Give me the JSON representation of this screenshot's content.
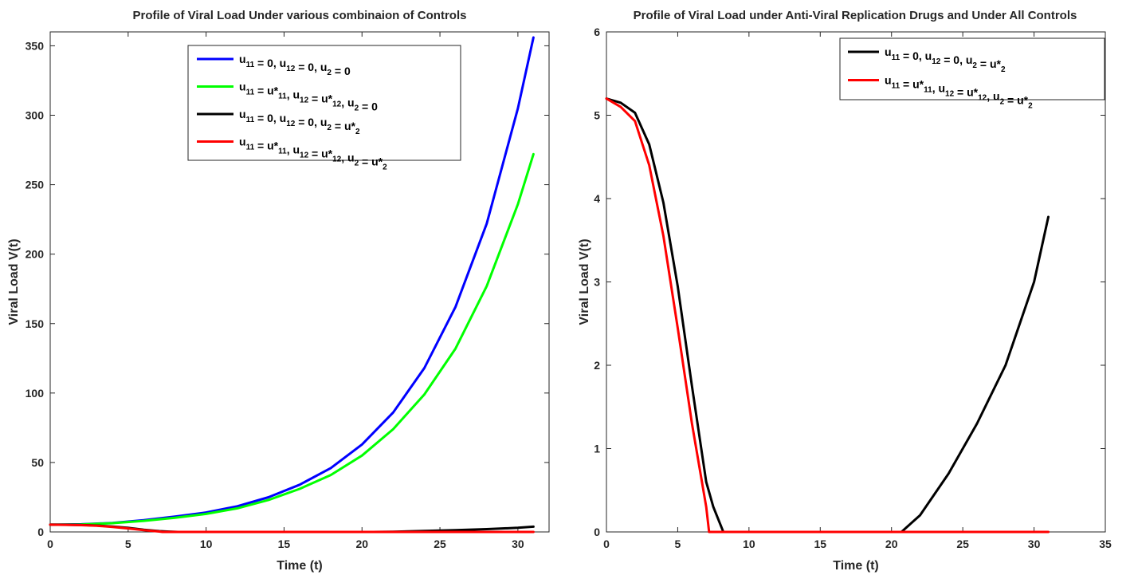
{
  "chart_data": [
    {
      "type": "line",
      "title": "Profile of Viral Load Under various combinaion of Controls",
      "xlabel": "Time (t)",
      "ylabel": "Viral Load V(t)",
      "xlim": [
        0,
        32
      ],
      "ylim": [
        0,
        360
      ],
      "xticks": [
        0,
        5,
        10,
        15,
        20,
        25,
        30
      ],
      "yticks": [
        0,
        50,
        100,
        150,
        200,
        250,
        300,
        350
      ],
      "legend_position": "top-center",
      "series": [
        {
          "name": "u11 = 0, u12 = 0, u2 = 0",
          "legend": [
            [
              "u",
              "11"
            ],
            [
              " = 0, u",
              "12"
            ],
            [
              " = 0, u",
              "2"
            ],
            [
              " = 0",
              ""
            ]
          ],
          "color": "#0000ff",
          "x": [
            0,
            2,
            4,
            6,
            8,
            10,
            12,
            14,
            16,
            18,
            20,
            22,
            24,
            26,
            28,
            30,
            31
          ],
          "y": [
            5.2,
            5.5,
            6.5,
            8.5,
            11,
            14,
            18.5,
            25,
            34,
            46,
            63,
            86,
            118,
            162,
            222,
            305,
            356
          ]
        },
        {
          "name": "u11 = u*11, u12 = u*12, u2 = 0",
          "legend": [
            [
              "u",
              "11"
            ],
            [
              " = u*",
              "11"
            ],
            [
              ", u",
              "12"
            ],
            [
              " = u*",
              "12"
            ],
            [
              ", u",
              "2"
            ],
            [
              " = 0",
              ""
            ]
          ],
          "color": "#00ff00",
          "x": [
            0,
            2,
            4,
            6,
            8,
            10,
            12,
            14,
            16,
            18,
            20,
            22,
            24,
            26,
            28,
            30,
            31
          ],
          "y": [
            5.2,
            5.4,
            6.3,
            8.0,
            10.2,
            13,
            17,
            23,
            31,
            41,
            55,
            74,
            99,
            132,
            177,
            236,
            272
          ]
        },
        {
          "name": "u11 = 0, u12 = 0, u2 = u*2",
          "legend": [
            [
              "u",
              "11"
            ],
            [
              " = 0, u",
              "12"
            ],
            [
              " = 0, u",
              "2"
            ],
            [
              " = u*",
              "2"
            ]
          ],
          "color": "#000000",
          "x": [
            0,
            1,
            2,
            3,
            4,
            5,
            6,
            7,
            7.5,
            8.2,
            10,
            15,
            20,
            20.7,
            22,
            24,
            26,
            28,
            30,
            31
          ],
          "y": [
            5.2,
            5.15,
            5.0,
            4.6,
            3.9,
            2.9,
            1.6,
            0.6,
            0.3,
            0,
            0,
            0,
            0,
            0,
            0.2,
            0.7,
            1.3,
            2.0,
            3.0,
            3.78
          ]
        },
        {
          "name": "u11 = u*11, u12 = u*12, u2 = u*2",
          "legend": [
            [
              "u",
              "11"
            ],
            [
              " = u*",
              "11"
            ],
            [
              ", u",
              "12"
            ],
            [
              " = u*",
              "12"
            ],
            [
              ", u",
              "2"
            ],
            [
              " =  u*",
              "2"
            ]
          ],
          "color": "#ff0000",
          "x": [
            0,
            1,
            2,
            3,
            4,
            5,
            6,
            7,
            7.2,
            10,
            15,
            20,
            25,
            31
          ],
          "y": [
            5.2,
            5.1,
            4.9,
            4.4,
            3.6,
            2.5,
            1.3,
            0.3,
            0,
            0,
            0,
            0,
            0,
            0
          ]
        }
      ]
    },
    {
      "type": "line",
      "title": "Profile of Viral Load under Anti-Viral Replication Drugs and Under All Controls",
      "xlabel": "Time (t)",
      "ylabel": "Viral Load V(t)",
      "xlim": [
        0,
        35
      ],
      "ylim": [
        0,
        6
      ],
      "xticks": [
        0,
        5,
        10,
        15,
        20,
        25,
        30,
        35
      ],
      "yticks": [
        0,
        1,
        2,
        3,
        4,
        5,
        6
      ],
      "legend_position": "top-right",
      "series": [
        {
          "name": "u11 = 0, u12 = 0, u2 = u*2",
          "legend": [
            [
              "u",
              "11"
            ],
            [
              " = 0, u",
              "12"
            ],
            [
              " = 0, u",
              "2"
            ],
            [
              " = u*",
              "2"
            ]
          ],
          "color": "#000000",
          "x": [
            0,
            1,
            2,
            3,
            4,
            5,
            6,
            7,
            7.5,
            8.2,
            10,
            15,
            20,
            20.7,
            22,
            24,
            26,
            28,
            30,
            31
          ],
          "y": [
            5.2,
            5.15,
            5.03,
            4.65,
            3.95,
            2.95,
            1.75,
            0.6,
            0.3,
            0,
            0,
            0,
            0,
            0,
            0.2,
            0.7,
            1.3,
            2.0,
            3.0,
            3.78
          ]
        },
        {
          "name": "u11 = u*11, u12 = u*12, u2 = u*2",
          "legend": [
            [
              "u",
              "11"
            ],
            [
              " = u*",
              "11"
            ],
            [
              ", u",
              "12"
            ],
            [
              " = u*",
              "12"
            ],
            [
              ", u",
              "2"
            ],
            [
              " =  u*",
              "2"
            ]
          ],
          "color": "#ff0000",
          "x": [
            0,
            1,
            2,
            3,
            4,
            5,
            6,
            7,
            7.2,
            10,
            15,
            20,
            25,
            31
          ],
          "y": [
            5.2,
            5.1,
            4.93,
            4.4,
            3.55,
            2.45,
            1.3,
            0.3,
            0,
            0,
            0,
            0,
            0,
            0
          ]
        }
      ]
    }
  ]
}
